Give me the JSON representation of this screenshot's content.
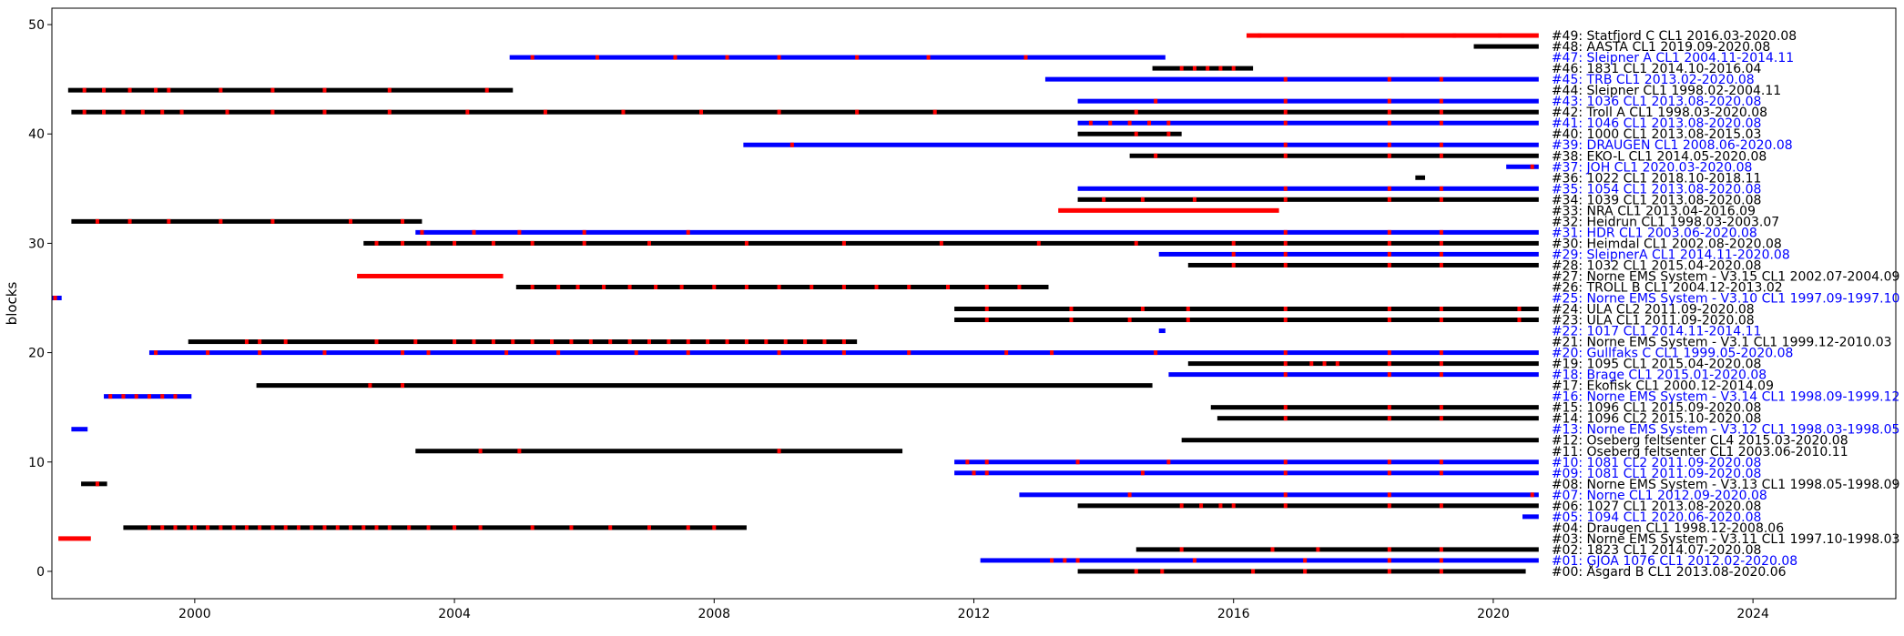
{
  "chart_data": {
    "type": "gantt",
    "ylabel": "blocks",
    "xlim": [
      1997.8,
      2026.2
    ],
    "ylim": [
      -2.5,
      51.5
    ],
    "xticks": [
      2000,
      2004,
      2008,
      2012,
      2016,
      2020,
      2024
    ],
    "yticks": [
      0,
      10,
      20,
      30,
      40,
      50
    ],
    "grid": false,
    "colors": {
      "blue": "#0000ff",
      "black": "#000000",
      "red": "#ff0000"
    },
    "rows": [
      {
        "y": 0,
        "label": "#00: Åsgard B CL1 2013.08-2020.06",
        "color": "black",
        "start": 2013.6,
        "end": 2020.5,
        "errors": [
          2014.5,
          2014.9,
          2016.3,
          2017.1,
          2018.4,
          2019.2
        ]
      },
      {
        "y": 1,
        "label": "#01: GJOA 1076 CL1 2012.02-2020.08",
        "color": "blue",
        "start": 2012.1,
        "end": 2020.7,
        "errors": [
          2013.2,
          2013.4,
          2013.6,
          2015.4,
          2017.1,
          2018.4,
          2019.2
        ]
      },
      {
        "y": 2,
        "label": "#02: 1823 CL1 2014.07-2020.08",
        "color": "black",
        "start": 2014.5,
        "end": 2020.7,
        "errors": [
          2015.2,
          2016.6,
          2017.3,
          2018.4,
          2019.2
        ]
      },
      {
        "y": 3,
        "label": "#03: Norne EMS System - V3.11 CL1 1997.10-1998.03",
        "color": "red",
        "start": 1997.9,
        "end": 1998.4,
        "errors": []
      },
      {
        "y": 4,
        "label": "#04: Draugen CL1 1998.12-2008.06",
        "color": "black",
        "start": 1998.9,
        "end": 2008.5,
        "errors": [
          1999.3,
          1999.5,
          1999.7,
          1999.9,
          2000.0,
          2000.2,
          2000.4,
          2000.6,
          2000.8,
          2001.0,
          2001.2,
          2001.4,
          2001.6,
          2001.8,
          2002.0,
          2002.2,
          2002.4,
          2002.6,
          2002.8,
          2003.0,
          2003.3,
          2003.6,
          2004.0,
          2004.4,
          2005.2,
          2005.8,
          2006.4,
          2007.0,
          2007.6,
          2008.0
        ]
      },
      {
        "y": 5,
        "label": "#05: 1094 CL1 2020.06-2020.08",
        "color": "blue",
        "start": 2020.45,
        "end": 2020.7,
        "errors": []
      },
      {
        "y": 6,
        "label": "#06: 1027 CL1 2013.08-2020.08",
        "color": "black",
        "start": 2013.6,
        "end": 2020.7,
        "errors": [
          2015.2,
          2015.5,
          2015.8,
          2016.0,
          2016.8,
          2018.4,
          2019.2
        ]
      },
      {
        "y": 7,
        "label": "#07: Norne CL1 2012.09-2020.08",
        "color": "blue",
        "start": 2012.7,
        "end": 2020.7,
        "errors": [
          2014.4,
          2016.8,
          2018.4,
          2020.6
        ]
      },
      {
        "y": 8,
        "label": "#08: Norne EMS System - V3.13 CL1 1998.05-1998.09",
        "color": "black",
        "start": 1998.25,
        "end": 1998.65,
        "errors": [
          1998.5
        ]
      },
      {
        "y": 9,
        "label": "#09: 1081 CL1 2011.09-2020.08",
        "color": "blue",
        "start": 2011.7,
        "end": 2020.7,
        "errors": [
          2012.0,
          2012.2,
          2014.6,
          2016.8,
          2018.4,
          2019.2
        ]
      },
      {
        "y": 10,
        "label": "#10: 1081 CL2 2011.09-2020.08",
        "color": "blue",
        "start": 2011.7,
        "end": 2020.7,
        "errors": [
          2011.9,
          2012.2,
          2013.6,
          2015.0,
          2016.8,
          2018.4,
          2019.2
        ]
      },
      {
        "y": 11,
        "label": "#11: Oseberg feltsenter CL1 2003.06-2010.11",
        "color": "black",
        "start": 2003.4,
        "end": 2010.9,
        "errors": [
          2004.4,
          2005.0,
          2009.0
        ]
      },
      {
        "y": 12,
        "label": "#12: Oseberg feltsenter CL4 2015.03-2020.08",
        "color": "black",
        "start": 2015.2,
        "end": 2020.7,
        "errors": []
      },
      {
        "y": 13,
        "label": "#13: Norne EMS System - V3.12 CL1 1998.03-1998.05",
        "color": "blue",
        "start": 1998.1,
        "end": 1998.35,
        "errors": []
      },
      {
        "y": 14,
        "label": "#14: 1096 CL2 2015.10-2020.08",
        "color": "black",
        "start": 2015.75,
        "end": 2020.7,
        "errors": [
          2016.8,
          2018.4,
          2019.2
        ]
      },
      {
        "y": 15,
        "label": "#15: 1096 CL1 2015.09-2020.08",
        "color": "black",
        "start": 2015.65,
        "end": 2020.7,
        "errors": [
          2016.8,
          2018.4,
          2019.2
        ]
      },
      {
        "y": 16,
        "label": "#16: Norne EMS System - V3.14 CL1 1998.09-1999.12",
        "color": "blue",
        "start": 1998.6,
        "end": 1999.95,
        "errors": [
          1998.7,
          1998.9,
          1999.1,
          1999.3,
          1999.5,
          1999.7
        ]
      },
      {
        "y": 17,
        "label": "#17: Ekofisk CL1 2000.12-2014.09",
        "color": "black",
        "start": 2000.95,
        "end": 2014.75,
        "errors": [
          2002.7,
          2003.2
        ]
      },
      {
        "y": 18,
        "label": "#18: Brage CL1 2015.01-2020.08",
        "color": "blue",
        "start": 2015.0,
        "end": 2020.7,
        "errors": [
          2016.8,
          2018.4,
          2019.2
        ]
      },
      {
        "y": 19,
        "label": "#19: 1095 CL1 2015.04-2020.08",
        "color": "black",
        "start": 2015.3,
        "end": 2020.7,
        "errors": [
          2016.8,
          2017.2,
          2017.4,
          2017.6,
          2018.4,
          2019.2
        ]
      },
      {
        "y": 20,
        "label": "#20: Gullfaks C CL1 1999.05-2020.08",
        "color": "blue",
        "start": 1999.3,
        "end": 2020.7,
        "errors": [
          1999.4,
          2000.2,
          2001.0,
          2002.0,
          2003.2,
          2003.6,
          2004.8,
          2005.6,
          2006.8,
          2007.6,
          2009.0,
          2010.0,
          2011.0,
          2012.5,
          2013.2,
          2014.8,
          2016.8,
          2018.4,
          2019.2
        ]
      },
      {
        "y": 21,
        "label": "#21: Norne EMS System - V3.1 CL1 1999.12-2010.03",
        "color": "black",
        "start": 1999.9,
        "end": 2010.2,
        "errors": [
          2000.8,
          2001.0,
          2001.4,
          2002.8,
          2003.4,
          2004.0,
          2004.3,
          2004.6,
          2004.9,
          2005.2,
          2005.5,
          2005.8,
          2006.1,
          2006.4,
          2006.7,
          2007.0,
          2007.3,
          2007.6,
          2007.9,
          2008.2,
          2008.5,
          2008.8,
          2009.1,
          2009.4,
          2009.7,
          2010.0
        ]
      },
      {
        "y": 22,
        "label": "#22: 1017 CL1 2014.11-2014.11",
        "color": "blue",
        "start": 2014.85,
        "end": 2014.95,
        "errors": []
      },
      {
        "y": 23,
        "label": "#23: ULA CL1 2011.09-2020.08",
        "color": "black",
        "start": 2011.7,
        "end": 2020.7,
        "errors": [
          2012.2,
          2013.5,
          2014.4,
          2015.3,
          2016.8,
          2018.4,
          2019.2,
          2020.4
        ]
      },
      {
        "y": 24,
        "label": "#24: ULA CL2 2011.09-2020.08",
        "color": "black",
        "start": 2011.7,
        "end": 2020.7,
        "errors": [
          2012.2,
          2013.5,
          2014.6,
          2015.3,
          2016.8,
          2018.4,
          2019.2,
          2020.4
        ]
      },
      {
        "y": 25,
        "label": "#25: Norne EMS System - V3.10 CL1 1997.09-1997.10",
        "color": "blue",
        "start": 1997.8,
        "end": 1997.95,
        "errors": [
          1997.85
        ]
      },
      {
        "y": 26,
        "label": "#26: TROLL B CL1 2004.12-2013.02",
        "color": "black",
        "start": 2004.95,
        "end": 2013.15,
        "errors": [
          2005.2,
          2005.6,
          2005.9,
          2006.3,
          2006.7,
          2007.1,
          2007.5,
          2008.0,
          2008.5,
          2009.0,
          2009.5,
          2010.0,
          2010.5,
          2011.0,
          2011.6,
          2012.2,
          2012.7
        ]
      },
      {
        "y": 27,
        "label": "#27: Norne EMS System - V3.15 CL1 2002.07-2004.09",
        "color": "red",
        "start": 2002.5,
        "end": 2004.75,
        "errors": []
      },
      {
        "y": 28,
        "label": "#28: 1032 CL1 2015.04-2020.08",
        "color": "black",
        "start": 2015.3,
        "end": 2020.7,
        "errors": [
          2016.0,
          2016.8,
          2018.4,
          2019.2
        ]
      },
      {
        "y": 29,
        "label": "#29: SleipnerA CL1 2014.11-2020.08",
        "color": "blue",
        "start": 2014.85,
        "end": 2020.7,
        "errors": [
          2016.0,
          2016.8,
          2018.4,
          2019.2
        ]
      },
      {
        "y": 30,
        "label": "#30: Heimdal CL1 2002.08-2020.08",
        "color": "black",
        "start": 2002.6,
        "end": 2020.7,
        "errors": [
          2002.8,
          2003.2,
          2003.6,
          2004.0,
          2004.6,
          2005.2,
          2006.0,
          2007.0,
          2008.5,
          2010.0,
          2011.5,
          2013.0,
          2014.5,
          2016.0,
          2016.8,
          2018.4,
          2019.2
        ]
      },
      {
        "y": 31,
        "label": "#31: HDR CL1 2003.06-2020.08",
        "color": "blue",
        "start": 2003.4,
        "end": 2020.7,
        "errors": [
          2003.5,
          2004.3,
          2005.0,
          2006.0,
          2007.6,
          2016.8,
          2018.4,
          2019.2
        ]
      },
      {
        "y": 32,
        "label": "#32: Heidrun CL1 1998.03-2003.07",
        "color": "black",
        "start": 1998.1,
        "end": 2003.5,
        "errors": [
          1998.5,
          1999.0,
          1999.6,
          2000.4,
          2001.2,
          2002.4,
          2003.2
        ]
      },
      {
        "y": 33,
        "label": "#33: NRA CL1 2013.04-2016.09",
        "color": "red",
        "start": 2013.3,
        "end": 2016.7,
        "errors": []
      },
      {
        "y": 34,
        "label": "#34: 1039 CL1 2013.08-2020.08",
        "color": "black",
        "start": 2013.6,
        "end": 2020.7,
        "errors": [
          2014.0,
          2014.6,
          2015.4,
          2016.8,
          2018.4,
          2019.2
        ]
      },
      {
        "y": 35,
        "label": "#35: 1054 CL1 2013.08-2020.08",
        "color": "blue",
        "start": 2013.6,
        "end": 2020.7,
        "errors": [
          2016.8,
          2018.4,
          2019.2
        ]
      },
      {
        "y": 36,
        "label": "#36: 1022 CL1 2018.10-2018.11",
        "color": "black",
        "start": 2018.8,
        "end": 2018.95,
        "errors": []
      },
      {
        "y": 37,
        "label": "#37: JOH CL1 2020.03-2020.08",
        "color": "blue",
        "start": 2020.2,
        "end": 2020.7,
        "errors": [
          2020.6
        ]
      },
      {
        "y": 38,
        "label": "#38: EKO-L CL1 2014.05-2020.08",
        "color": "black",
        "start": 2014.4,
        "end": 2020.7,
        "errors": [
          2014.8,
          2016.8,
          2018.4,
          2019.2
        ]
      },
      {
        "y": 39,
        "label": "#39: DRAUGEN CL1 2008.06-2020.08",
        "color": "blue",
        "start": 2008.45,
        "end": 2020.7,
        "errors": [
          2009.2,
          2016.8,
          2018.4,
          2019.2
        ]
      },
      {
        "y": 40,
        "label": "#40: 1000 CL1 2013.08-2015.03",
        "color": "black",
        "start": 2013.6,
        "end": 2015.2,
        "errors": [
          2014.5,
          2015.0
        ]
      },
      {
        "y": 41,
        "label": "#41: 1046 CL1 2013.08-2020.08",
        "color": "blue",
        "start": 2013.6,
        "end": 2020.7,
        "errors": [
          2013.8,
          2014.1,
          2014.4,
          2014.7,
          2015.0,
          2016.8,
          2018.4,
          2019.2
        ]
      },
      {
        "y": 42,
        "label": "#42: Troll A CL1 1998.03-2020.08",
        "color": "black",
        "start": 1998.1,
        "end": 2020.7,
        "errors": [
          1998.3,
          1998.6,
          1998.9,
          1999.2,
          1999.5,
          1999.8,
          2000.5,
          2001.2,
          2002.0,
          2003.0,
          2004.2,
          2005.4,
          2006.6,
          2007.8,
          2009.0,
          2010.2,
          2011.4,
          2014.5,
          2016.8,
          2018.4,
          2019.2
        ]
      },
      {
        "y": 43,
        "label": "#43: 1036 CL1 2013.08-2020.08",
        "color": "blue",
        "start": 2013.6,
        "end": 2020.7,
        "errors": [
          2014.8,
          2016.8,
          2018.4,
          2019.2
        ]
      },
      {
        "y": 44,
        "label": "#44: Sleipner CL1 1998.02-2004.11",
        "color": "black",
        "start": 1998.05,
        "end": 2004.9,
        "errors": [
          1998.3,
          1998.6,
          1999.0,
          1999.4,
          1999.6,
          2000.4,
          2001.2,
          2002.0,
          2003.0,
          2004.5
        ]
      },
      {
        "y": 45,
        "label": "#45: TRB CL1 2013.02-2020.08",
        "color": "blue",
        "start": 2013.1,
        "end": 2020.7,
        "errors": [
          2016.8,
          2018.4,
          2019.2
        ]
      },
      {
        "y": 46,
        "label": "#46: 1831 CL1 2014.10-2016.04",
        "color": "black",
        "start": 2014.75,
        "end": 2016.3,
        "errors": [
          2015.2,
          2015.4,
          2015.6,
          2015.8,
          2016.0
        ]
      },
      {
        "y": 47,
        "label": "#47: Sleipner A CL1 2004.11-2014.11",
        "color": "blue",
        "start": 2004.85,
        "end": 2014.95,
        "errors": [
          2005.2,
          2006.2,
          2007.4,
          2008.2,
          2009.0,
          2010.2,
          2011.3,
          2012.8
        ]
      },
      {
        "y": 48,
        "label": "#48: AASTA CL1 2019.09-2020.08",
        "color": "black",
        "start": 2019.7,
        "end": 2020.7,
        "errors": []
      },
      {
        "y": 49,
        "label": "#49: Statfjord C CL1 2016.03-2020.08",
        "color": "red",
        "start": 2016.2,
        "end": 2020.7,
        "errors": [
          2016.4,
          2018.6,
          2019.4,
          2020.1
        ]
      }
    ]
  }
}
